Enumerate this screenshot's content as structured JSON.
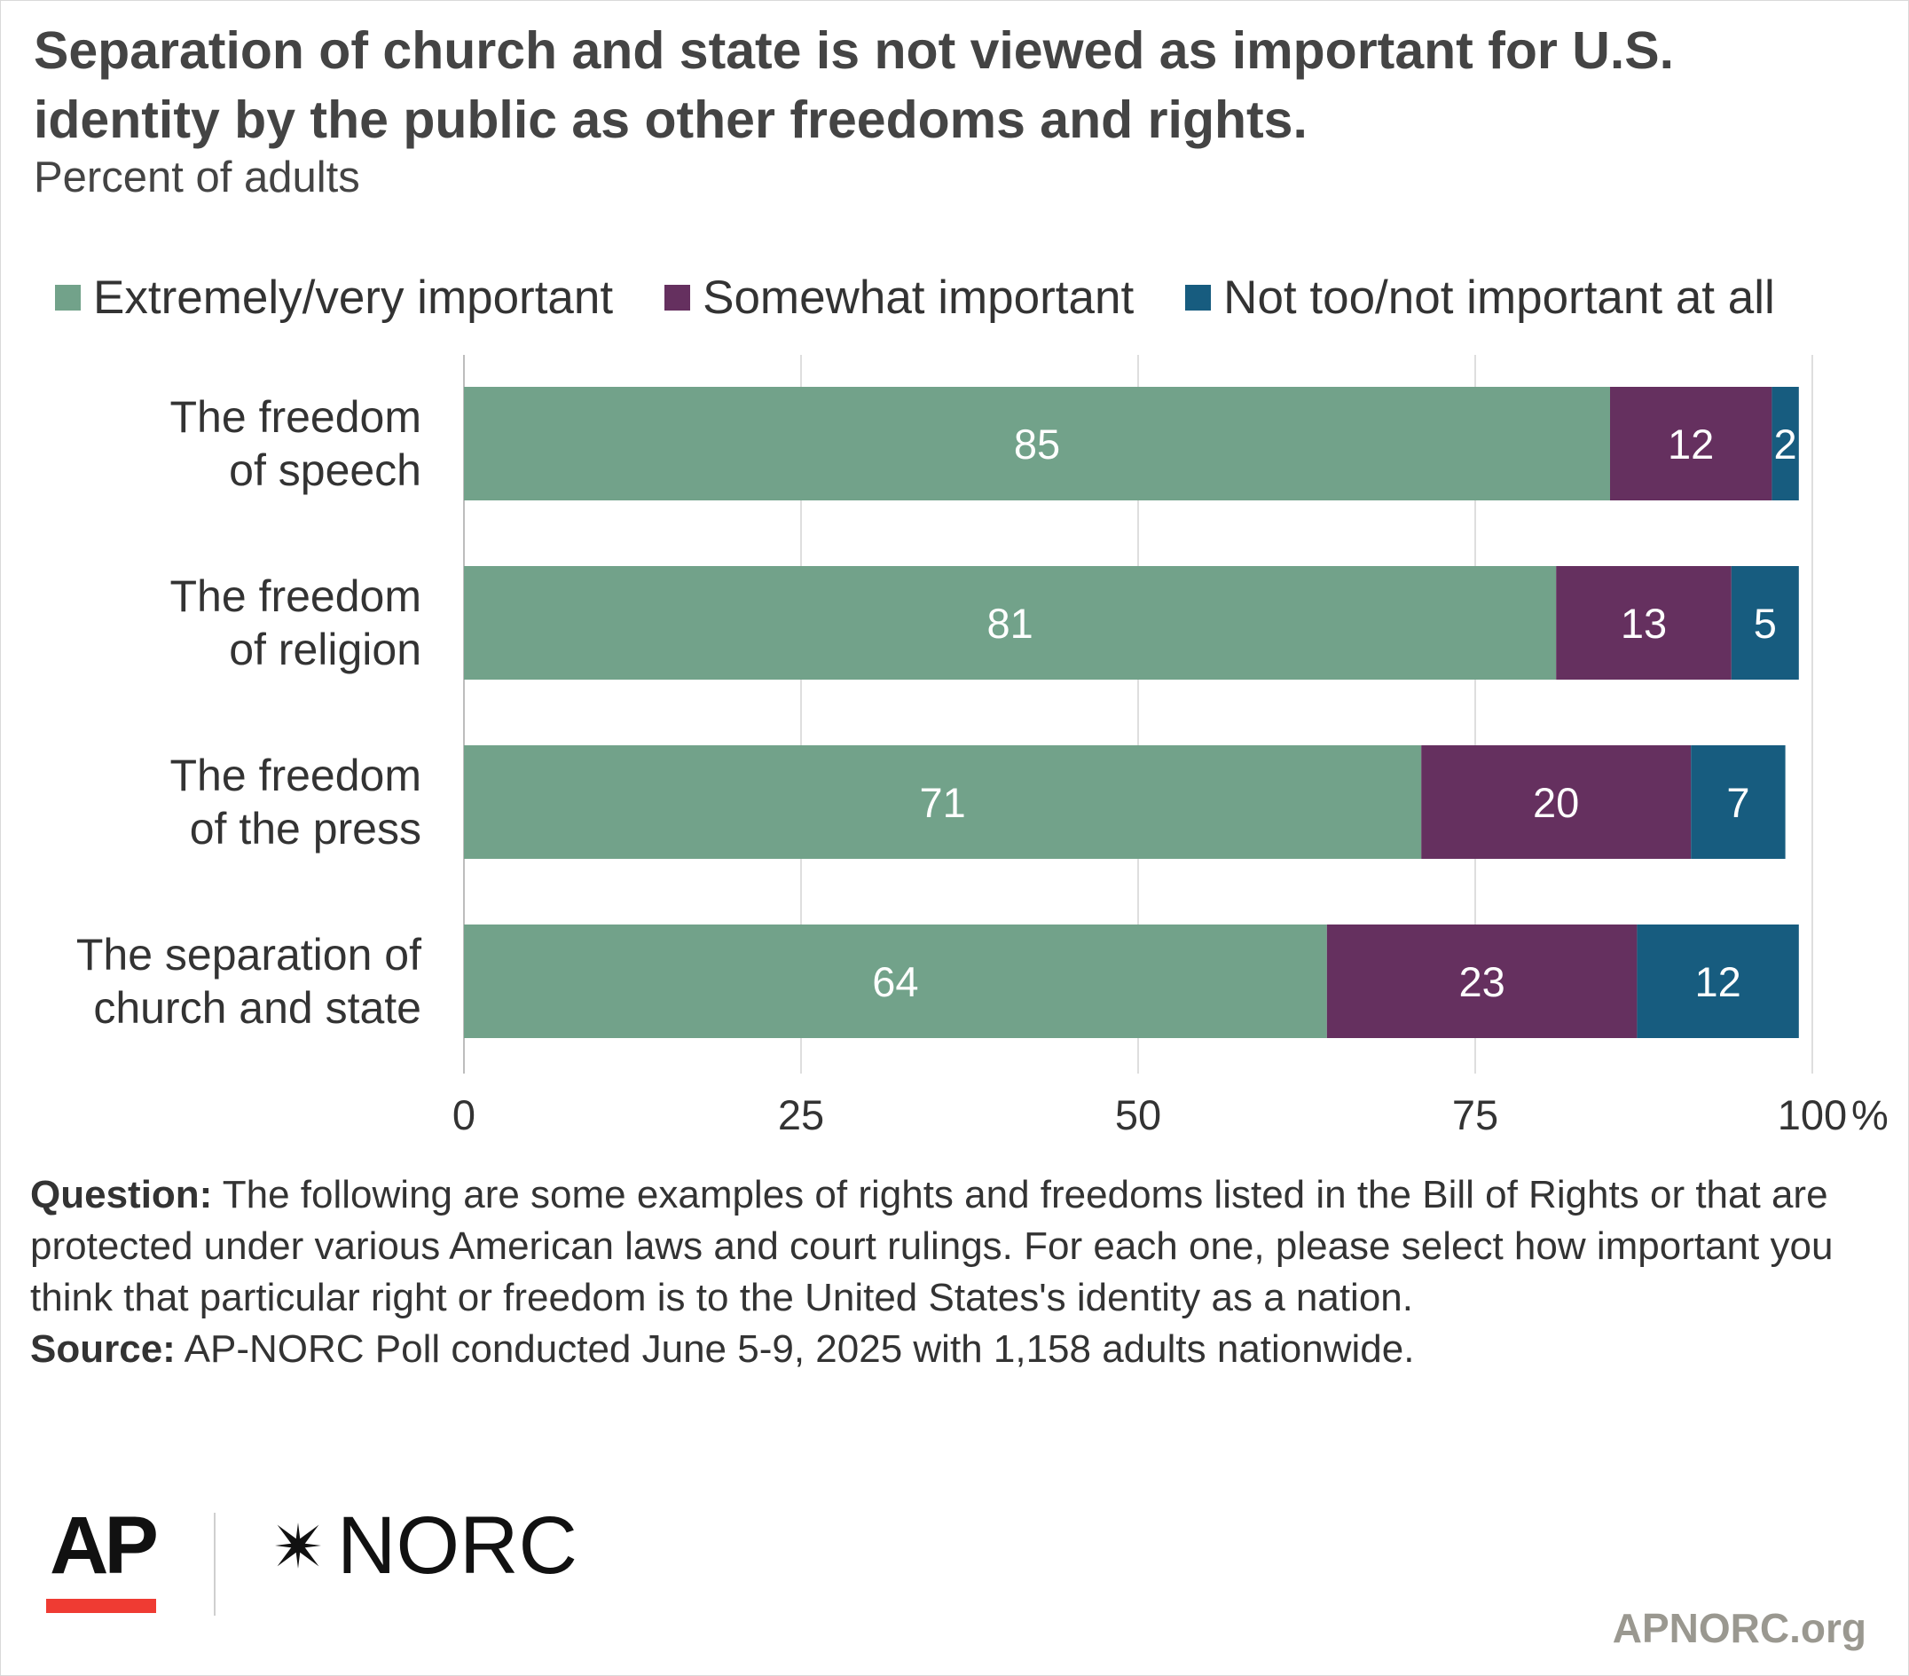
{
  "chart_data": {
    "type": "bar",
    "orientation": "horizontal",
    "stacked": true,
    "title": "Separation of church and state is not viewed as important for U.S. identity by the public as other freedoms and rights.",
    "subtitle": "Percent of adults",
    "categories": [
      [
        "The freedom",
        "of speech"
      ],
      [
        "The freedom",
        "of religion"
      ],
      [
        "The freedom",
        "of the press"
      ],
      [
        "The separation of",
        "church and state"
      ]
    ],
    "series": [
      {
        "name": "Extremely/very important",
        "color": "#72a28a",
        "values": [
          85,
          81,
          71,
          64
        ]
      },
      {
        "name": "Somewhat important",
        "color": "#65305f",
        "values": [
          12,
          13,
          20,
          23
        ]
      },
      {
        "name": "Not too/not important at all",
        "color": "#175c7f",
        "values": [
          2,
          5,
          7,
          12
        ]
      }
    ],
    "xlim": [
      0,
      100
    ],
    "xticks": [
      "0",
      "25",
      "50",
      "75",
      "100"
    ],
    "unit": "%",
    "grid": true,
    "legend_position": "top-left"
  },
  "notes": {
    "question_label": "Question:",
    "question_text": " The following are some examples of rights and freedoms listed in the Bill of Rights or that are protected under various American laws and court rulings. For each one, please select how important you think that particular right or freedom is to the United States's identity as a nation.",
    "source_label": "Source:",
    "source_text": " AP-NORC Poll conducted June 5-9, 2025 with 1,158 adults nationwide."
  },
  "branding": {
    "ap": "AP",
    "norc": "NORC",
    "site": "APNORC.org",
    "ap_accent": "#ef3b33"
  }
}
